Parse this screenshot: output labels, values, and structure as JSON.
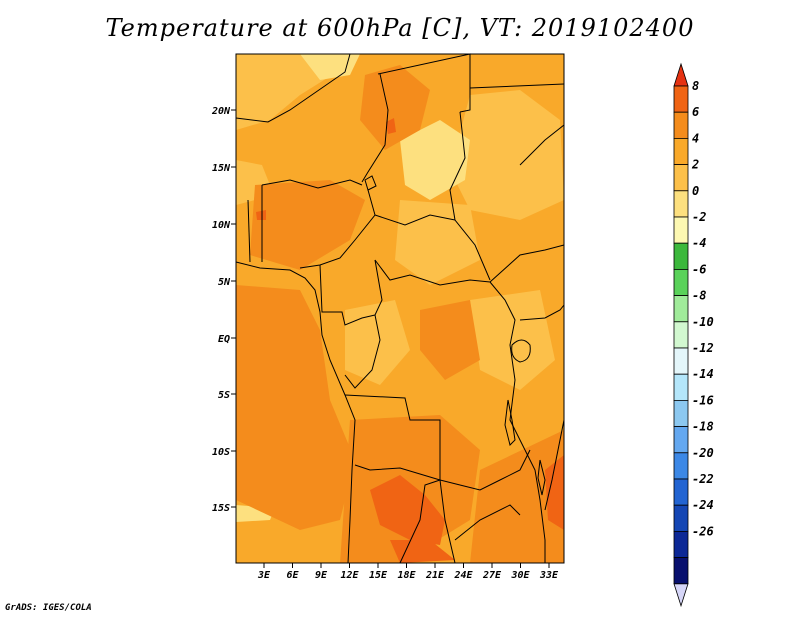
{
  "title": "Temperature at 600hPa [C], VT: 2019102400",
  "credit": "GrADS: IGES/COLA",
  "map": {
    "lat_labels": [
      "20N",
      "15N",
      "10N",
      "5N",
      "EQ",
      "5S",
      "10S",
      "15S"
    ],
    "lon_labels": [
      "3E",
      "6E",
      "9E",
      "12E",
      "15E",
      "18E",
      "21E",
      "24E",
      "27E",
      "30E",
      "33E"
    ]
  },
  "colorbar": {
    "levels": [
      "8",
      "6",
      "4",
      "2",
      "0",
      "-2",
      "-4",
      "-6",
      "-8",
      "-10",
      "-12",
      "-14",
      "-16",
      "-18",
      "-20",
      "-22",
      "-24",
      "-26"
    ],
    "colors": [
      "#e53212",
      "#f06414",
      "#f48c1c",
      "#f9a92a",
      "#fcc04a",
      "#fde07f",
      "#fdf8b2",
      "#3cb83c",
      "#5ad25a",
      "#a0eb9a",
      "#d2f8d0",
      "#e4f6fa",
      "#b4e6fa",
      "#8cc8f0",
      "#64a8f0",
      "#3c88e6",
      "#2264d2",
      "#1446b4",
      "#0c2896",
      "#08106e",
      "#d6d6f8"
    ]
  },
  "fills": {
    "base": "#f9a92a",
    "warm": "#f48c1c",
    "hot": "#f06414",
    "cool": "#fcc04a",
    "cooler": "#fde07f"
  }
}
